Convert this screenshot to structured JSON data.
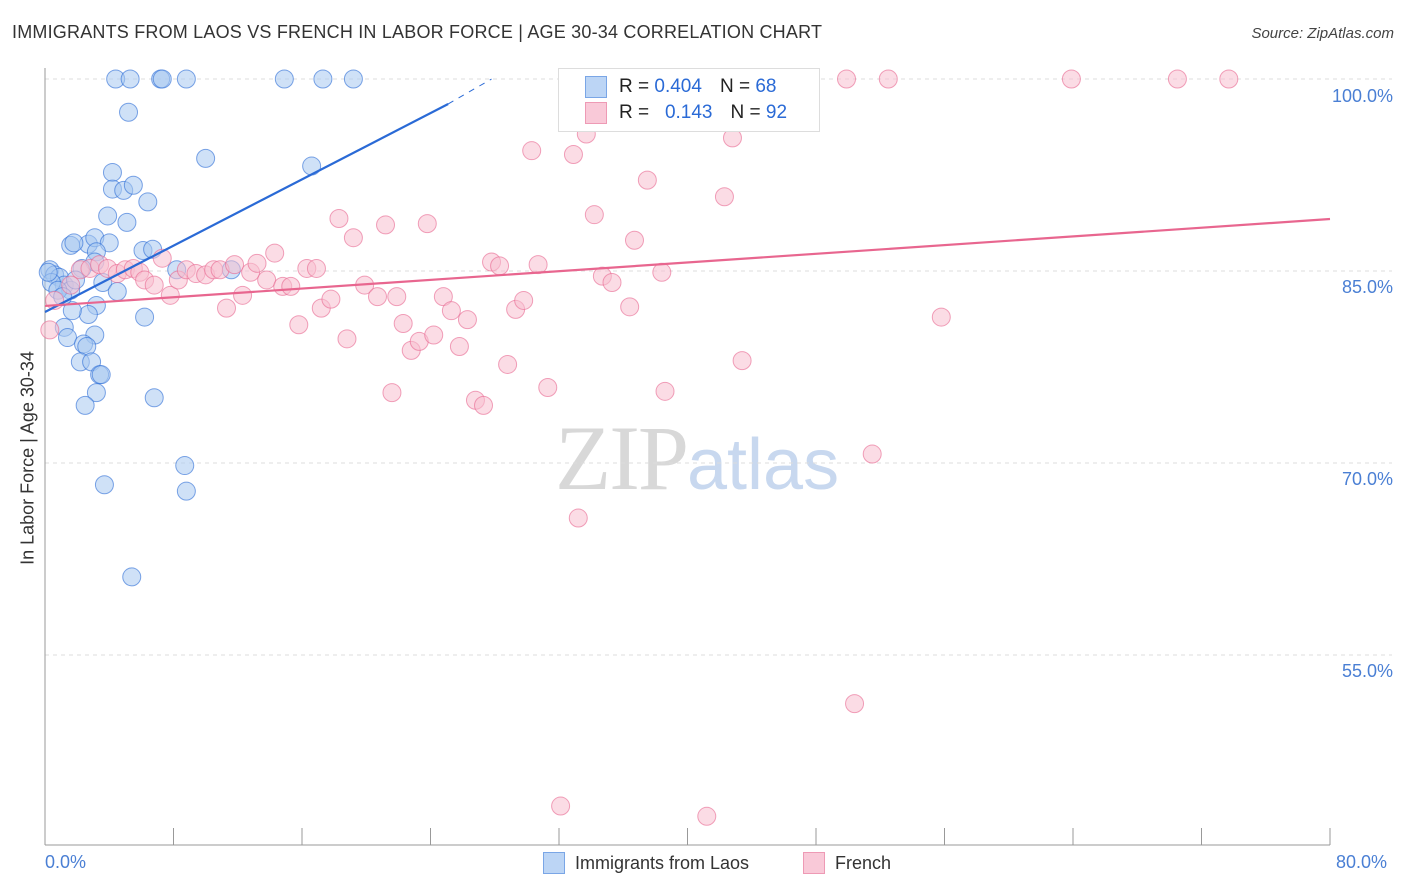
{
  "title": "IMMIGRANTS FROM LAOS VS FRENCH IN LABOR FORCE | AGE 30-34 CORRELATION CHART",
  "source": "Source: ZipAtlas.com",
  "watermark": {
    "zip": "ZIP",
    "atlas": "atlas"
  },
  "legend": {
    "r_label": "R =",
    "n_label": "N =",
    "series": [
      {
        "r": "0.404",
        "n": "68"
      },
      {
        "r": "0.143",
        "n": "92"
      }
    ]
  },
  "chart_data": {
    "type": "scatter",
    "title": "IMMIGRANTS FROM LAOS VS FRENCH IN LABOR FORCE | AGE 30-34 CORRELATION CHART",
    "xlabel": "",
    "ylabel": "In Labor Force | Age 30-34",
    "xlim": [
      0,
      80
    ],
    "ylim": [
      40.2,
      100.9
    ],
    "x_tick_labels": [
      "0.0%",
      "80.0%"
    ],
    "y_ticks": [
      100,
      85,
      70,
      55
    ],
    "y_tick_labels": [
      "100.0%",
      "85.0%",
      "70.0%",
      "55.0%"
    ],
    "grid": true,
    "legend_placement": "bottom",
    "series": [
      {
        "name": "Immigrants from Laos",
        "color": "#2a6ad6",
        "fill": "#a8c8f0",
        "trend": {
          "x0": 0,
          "y0": 81.8,
          "x1": 25.1,
          "y1": 98.05,
          "dash_to_x": 27.8,
          "dash_to_y": 100
        },
        "points": [
          [
            4.4,
            100
          ],
          [
            5.3,
            100
          ],
          [
            7.2,
            100
          ],
          [
            7.3,
            100
          ],
          [
            8.8,
            100
          ],
          [
            14.9,
            100
          ],
          [
            17.3,
            100
          ],
          [
            19.2,
            100
          ],
          [
            5.2,
            97.4
          ],
          [
            10.0,
            93.8
          ],
          [
            16.6,
            93.2
          ],
          [
            4.2,
            92.7
          ],
          [
            4.2,
            91.4
          ],
          [
            4.9,
            91.3
          ],
          [
            5.5,
            91.7
          ],
          [
            6.4,
            90.4
          ],
          [
            3.9,
            89.3
          ],
          [
            5.1,
            88.8
          ],
          [
            2.7,
            87.1
          ],
          [
            1.6,
            87.0
          ],
          [
            1.8,
            87.2
          ],
          [
            3.1,
            87.6
          ],
          [
            4.0,
            87.2
          ],
          [
            6.1,
            86.6
          ],
          [
            6.7,
            86.7
          ],
          [
            3.2,
            86.5
          ],
          [
            3.1,
            85.7
          ],
          [
            2.3,
            85.2
          ],
          [
            8.2,
            85.1
          ],
          [
            11.6,
            85.1
          ],
          [
            0.3,
            85.1
          ],
          [
            0.6,
            84.7
          ],
          [
            0.9,
            84.5
          ],
          [
            1.2,
            83.9
          ],
          [
            1.6,
            83.5
          ],
          [
            1.9,
            84.3
          ],
          [
            3.6,
            84.1
          ],
          [
            4.5,
            83.4
          ],
          [
            3.2,
            82.3
          ],
          [
            2.7,
            81.6
          ],
          [
            1.7,
            81.9
          ],
          [
            6.2,
            81.4
          ],
          [
            1.2,
            80.6
          ],
          [
            1.4,
            79.8
          ],
          [
            3.1,
            80.0
          ],
          [
            2.4,
            79.3
          ],
          [
            2.6,
            79.1
          ],
          [
            2.2,
            77.9
          ],
          [
            2.9,
            77.9
          ],
          [
            3.4,
            76.9
          ],
          [
            3.5,
            76.9
          ],
          [
            3.2,
            75.5
          ],
          [
            2.5,
            74.5
          ],
          [
            6.8,
            75.1
          ],
          [
            8.7,
            69.8
          ],
          [
            8.8,
            67.8
          ],
          [
            3.7,
            68.3
          ],
          [
            5.4,
            61.1
          ],
          [
            0.4,
            84.1
          ],
          [
            0.8,
            83.5
          ],
          [
            0.2,
            84.9
          ],
          [
            1.1,
            83.0
          ]
        ]
      },
      {
        "name": "French",
        "color": "#e8668f",
        "fill": "#f7bfd0",
        "trend": {
          "x0": 0,
          "y0": 82.27,
          "x1": 80,
          "y1": 89.06
        },
        "points": [
          [
            0.3,
            80.4
          ],
          [
            0.6,
            82.7
          ],
          [
            1.6,
            83.9
          ],
          [
            2.2,
            85.1
          ],
          [
            2.8,
            85.2
          ],
          [
            3.4,
            85.5
          ],
          [
            3.9,
            85.2
          ],
          [
            4.5,
            84.8
          ],
          [
            5.0,
            85.1
          ],
          [
            5.5,
            85.2
          ],
          [
            5.9,
            84.9
          ],
          [
            6.2,
            84.3
          ],
          [
            6.8,
            83.9
          ],
          [
            7.3,
            86.0
          ],
          [
            7.8,
            83.1
          ],
          [
            8.3,
            84.3
          ],
          [
            8.8,
            85.1
          ],
          [
            9.4,
            84.8
          ],
          [
            10.0,
            84.7
          ],
          [
            10.5,
            85.1
          ],
          [
            10.9,
            85.1
          ],
          [
            11.3,
            82.1
          ],
          [
            11.8,
            85.5
          ],
          [
            12.3,
            83.1
          ],
          [
            12.8,
            84.9
          ],
          [
            13.2,
            85.6
          ],
          [
            13.8,
            84.3
          ],
          [
            14.3,
            86.4
          ],
          [
            14.8,
            83.8
          ],
          [
            15.3,
            83.8
          ],
          [
            15.8,
            80.8
          ],
          [
            16.3,
            85.2
          ],
          [
            16.9,
            85.2
          ],
          [
            17.2,
            82.1
          ],
          [
            17.8,
            82.8
          ],
          [
            18.3,
            89.1
          ],
          [
            18.8,
            79.7
          ],
          [
            19.2,
            87.6
          ],
          [
            19.9,
            83.9
          ],
          [
            20.7,
            83.0
          ],
          [
            21.2,
            88.6
          ],
          [
            21.6,
            75.5
          ],
          [
            21.9,
            83.0
          ],
          [
            22.3,
            80.9
          ],
          [
            22.8,
            78.8
          ],
          [
            23.3,
            79.5
          ],
          [
            23.8,
            88.7
          ],
          [
            24.2,
            80.0
          ],
          [
            24.8,
            83.0
          ],
          [
            25.3,
            81.9
          ],
          [
            25.8,
            79.1
          ],
          [
            26.3,
            81.2
          ],
          [
            26.8,
            74.9
          ],
          [
            27.3,
            74.5
          ],
          [
            27.8,
            85.7
          ],
          [
            28.3,
            85.4
          ],
          [
            28.8,
            77.7
          ],
          [
            29.3,
            82.0
          ],
          [
            29.8,
            82.7
          ],
          [
            30.3,
            94.4
          ],
          [
            30.7,
            85.5
          ],
          [
            31.3,
            75.9
          ],
          [
            32.9,
            94.1
          ],
          [
            33.2,
            65.7
          ],
          [
            33.7,
            95.7
          ],
          [
            34.2,
            89.4
          ],
          [
            34.7,
            84.6
          ],
          [
            35.3,
            84.1
          ],
          [
            36.4,
            82.2
          ],
          [
            36.7,
            87.4
          ],
          [
            37.5,
            92.1
          ],
          [
            38.6,
            75.6
          ],
          [
            38.4,
            84.9
          ],
          [
            42.3,
            90.8
          ],
          [
            42.8,
            95.4
          ],
          [
            43.4,
            78.0
          ],
          [
            51.5,
            70.7
          ],
          [
            55.8,
            81.4
          ],
          [
            50.4,
            51.2
          ],
          [
            32.1,
            43.2
          ],
          [
            41.2,
            42.4
          ],
          [
            49.9,
            100
          ],
          [
            52.5,
            100
          ],
          [
            63.9,
            100
          ],
          [
            70.5,
            100
          ],
          [
            73.7,
            100
          ],
          [
            38.0,
            100
          ],
          [
            41.1,
            100
          ],
          [
            41.8,
            100
          ]
        ]
      }
    ]
  }
}
